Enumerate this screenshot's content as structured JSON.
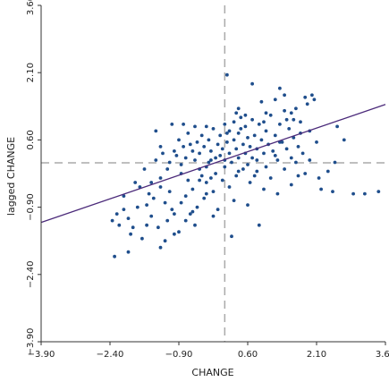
{
  "chart_data": {
    "type": "scatter",
    "title": "",
    "xlabel": "CHANGE",
    "ylabel": "lagged CHANGE",
    "xlim": [
      -3.9,
      3.6
    ],
    "ylim": [
      -3.9,
      3.6
    ],
    "x_ticks": [
      -3.9,
      -2.4,
      -0.9,
      0.6,
      2.1,
      3.6
    ],
    "y_ticks": [
      -3.9,
      -2.4,
      -0.9,
      0.6,
      2.1,
      3.6
    ],
    "x_tick_labels": [
      "−3.90",
      "−2.40",
      "−0.90",
      "0.60",
      "2.10",
      "3.60"
    ],
    "y_tick_labels": [
      "−3.90",
      "−2.40",
      "−0.90",
      "0.60",
      "2.10",
      "3.60"
    ],
    "grid": false,
    "mean_x": 0.1,
    "mean_y": 0.09,
    "regression_line": {
      "x": [
        -3.9,
        3.6
      ],
      "y": [
        -1.24,
        1.39
      ]
    },
    "colors": {
      "points": "#1f4e8c",
      "regression": "#4b2a7a",
      "mean_lines": "#aaaaaa",
      "axes": "#333333"
    },
    "series": [
      {
        "values": [
          [
            -2.0,
            -1.9
          ],
          [
            -1.95,
            -1.5
          ],
          [
            -2.2,
            -1.3
          ],
          [
            -1.6,
            -1.3
          ],
          [
            -2.0,
            -1.15
          ],
          [
            -2.1,
            -0.65
          ],
          [
            -1.7,
            -1.6
          ],
          [
            -2.3,
            -2.0
          ],
          [
            -2.35,
            -1.2
          ],
          [
            -2.25,
            -1.05
          ],
          [
            -1.8,
            -0.9
          ],
          [
            -1.5,
            -1.1
          ],
          [
            -1.35,
            -1.35
          ],
          [
            -1.3,
            -1.8
          ],
          [
            -1.15,
            -1.2
          ],
          [
            -1.05,
            -0.95
          ],
          [
            -1.2,
            -0.8
          ],
          [
            -1.3,
            -0.45
          ],
          [
            -1.55,
            -0.6
          ],
          [
            -1.75,
            -0.45
          ],
          [
            -1.65,
            -0.05
          ],
          [
            -1.4,
            0.15
          ],
          [
            -1.3,
            -0.25
          ],
          [
            -1.1,
            -0.55
          ],
          [
            -1.0,
            -1.05
          ],
          [
            -0.9,
            -1.45
          ],
          [
            -0.85,
            -0.8
          ],
          [
            -0.75,
            -0.65
          ],
          [
            -0.7,
            -0.3
          ],
          [
            -0.65,
            -1.05
          ],
          [
            -0.6,
            -0.5
          ],
          [
            -0.55,
            -1.3
          ],
          [
            -0.5,
            -0.9
          ],
          [
            -0.45,
            -0.05
          ],
          [
            -0.4,
            -0.2
          ],
          [
            -0.35,
            -0.7
          ],
          [
            -0.3,
            -0.35
          ],
          [
            -0.25,
            0.1
          ],
          [
            -0.2,
            -0.25
          ],
          [
            -0.15,
            -0.55
          ],
          [
            -1.4,
            0.8
          ],
          [
            -1.3,
            0.45
          ],
          [
            -1.25,
            0.3
          ],
          [
            -1.1,
            0.1
          ],
          [
            -1.0,
            0.35
          ],
          [
            -0.95,
            0.25
          ],
          [
            -0.9,
            0.6
          ],
          [
            -0.85,
            0.05
          ],
          [
            -0.8,
            0.45
          ],
          [
            -0.75,
            0.2
          ],
          [
            -0.7,
            0.75
          ],
          [
            -0.65,
            0.5
          ],
          [
            -0.6,
            0.35
          ],
          [
            -0.55,
            0.15
          ],
          [
            -0.5,
            0.55
          ],
          [
            -0.45,
            0.3
          ],
          [
            -0.4,
            0.7
          ],
          [
            -0.35,
            0.45
          ],
          [
            -0.3,
            0.9
          ],
          [
            -0.25,
            0.6
          ],
          [
            -0.2,
            0.35
          ],
          [
            -0.15,
            0.85
          ],
          [
            -0.1,
            0.2
          ],
          [
            -0.05,
            0.5
          ],
          [
            0.0,
            0.25
          ],
          [
            0.0,
            0.7
          ],
          [
            0.05,
            0.4
          ],
          [
            0.1,
            0.15
          ],
          [
            0.1,
            0.95
          ],
          [
            0.15,
            0.55
          ],
          [
            0.2,
            0.3
          ],
          [
            0.2,
            0.8
          ],
          [
            0.25,
            0.1
          ],
          [
            0.3,
            0.6
          ],
          [
            0.3,
            1.0
          ],
          [
            0.35,
            0.4
          ],
          [
            0.4,
            0.75
          ],
          [
            0.4,
            0.2
          ],
          [
            0.45,
            1.1
          ],
          [
            0.5,
            0.5
          ],
          [
            0.55,
            0.3
          ],
          [
            0.55,
            0.9
          ],
          [
            0.6,
            0.65
          ],
          [
            0.65,
            0.45
          ],
          [
            0.7,
            1.05
          ],
          [
            0.7,
            0.2
          ],
          [
            0.75,
            0.7
          ],
          [
            0.8,
            0.4
          ],
          [
            0.85,
            0.95
          ],
          [
            0.9,
            0.6
          ],
          [
            0.95,
            0.3
          ],
          [
            1.0,
            0.8
          ],
          [
            1.05,
            0.5
          ],
          [
            1.1,
            1.15
          ],
          [
            1.15,
            0.35
          ],
          [
            1.2,
            0.7
          ],
          [
            1.25,
            0.15
          ],
          [
            1.3,
            0.95
          ],
          [
            1.35,
            0.55
          ],
          [
            1.4,
            1.25
          ],
          [
            1.45,
            0.4
          ],
          [
            1.5,
            0.85
          ],
          [
            1.55,
            0.2
          ],
          [
            1.6,
            0.65
          ],
          [
            1.65,
            1.3
          ],
          [
            1.7,
            0.45
          ],
          [
            1.75,
            1.0
          ],
          [
            1.8,
            0.3
          ],
          [
            1.9,
            1.4
          ],
          [
            1.95,
            0.8
          ],
          [
            2.0,
            1.6
          ],
          [
            2.05,
            1.5
          ],
          [
            1.85,
            1.55
          ],
          [
            1.4,
            1.6
          ],
          [
            1.2,
            1.5
          ],
          [
            0.9,
            1.45
          ],
          [
            0.4,
            1.3
          ],
          [
            0.15,
            2.05
          ],
          [
            0.7,
            1.85
          ],
          [
            1.3,
            1.75
          ],
          [
            -0.3,
            0.0
          ],
          [
            -0.1,
            -0.15
          ],
          [
            0.05,
            -0.3
          ],
          [
            0.2,
            -0.45
          ],
          [
            0.35,
            -0.2
          ],
          [
            0.5,
            -0.05
          ],
          [
            0.65,
            -0.35
          ],
          [
            0.8,
            -0.1
          ],
          [
            0.95,
            -0.5
          ],
          [
            1.1,
            -0.25
          ],
          [
            1.25,
            -0.6
          ],
          [
            1.4,
            -0.05
          ],
          [
            1.55,
            -0.4
          ],
          [
            1.7,
            -0.2
          ],
          [
            1.85,
            -0.15
          ],
          [
            2.15,
            -0.25
          ],
          [
            2.35,
            -0.1
          ],
          [
            2.2,
            -0.5
          ],
          [
            2.5,
            0.1
          ],
          [
            2.7,
            0.6
          ],
          [
            2.55,
            0.9
          ],
          [
            2.9,
            -0.6
          ],
          [
            3.15,
            -0.6
          ],
          [
            3.45,
            -0.55
          ],
          [
            2.45,
            -0.55
          ],
          [
            0.85,
            -1.3
          ],
          [
            0.6,
            -0.85
          ],
          [
            0.3,
            -0.75
          ],
          [
            -0.05,
            -0.95
          ],
          [
            0.25,
            -1.55
          ],
          [
            -0.3,
            -0.6
          ],
          [
            -0.45,
            -0.3
          ],
          [
            -0.75,
            -1.2
          ],
          [
            -1.0,
            -1.5
          ],
          [
            -1.2,
            -1.65
          ],
          [
            -0.55,
            0.9
          ],
          [
            -1.05,
            0.95
          ],
          [
            -0.8,
            0.95
          ],
          [
            0.35,
            1.2
          ],
          [
            0.55,
            1.15
          ],
          [
            1.0,
            1.2
          ],
          [
            1.45,
            1.05
          ],
          [
            1.6,
            1.05
          ],
          [
            0.15,
            0.75
          ],
          [
            0.45,
            0.85
          ],
          [
            -1.6,
            -0.85
          ],
          [
            -1.85,
            -0.35
          ],
          [
            -1.5,
            -0.35
          ],
          [
            -2.1,
            -0.95
          ],
          [
            -1.9,
            -1.35
          ],
          [
            -0.15,
            -1.1
          ],
          [
            -0.6,
            -1.0
          ],
          [
            -0.85,
            -0.15
          ],
          [
            -1.45,
            -0.7
          ],
          [
            -1.15,
            -0.05
          ],
          [
            0.8,
            0.15
          ],
          [
            1.0,
            0.0
          ],
          [
            1.2,
            0.25
          ],
          [
            1.65,
            0.1
          ],
          [
            1.3,
            0.55
          ],
          [
            0.6,
            0.05
          ],
          [
            0.75,
            -0.2
          ],
          [
            0.4,
            -0.1
          ],
          [
            0.1,
            0.0
          ],
          [
            -0.2,
            0.15
          ],
          [
            1.75,
            0.75
          ],
          [
            1.95,
            0.15
          ],
          [
            2.1,
            0.55
          ],
          [
            1.55,
            1.2
          ],
          [
            0.95,
            1.0
          ]
        ]
      }
    ]
  }
}
